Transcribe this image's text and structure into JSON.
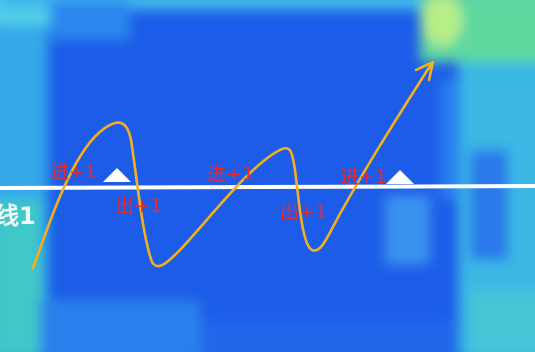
{
  "line": {
    "label": "线1"
  },
  "annotations": [
    {
      "text": "进+1"
    },
    {
      "text": "出+1"
    },
    {
      "text": "进+1"
    },
    {
      "text": "出+1"
    },
    {
      "text": "进+1"
    }
  ],
  "colors": {
    "counting_line": "#ffffff",
    "path": "#f2b01e",
    "annotation_text": "#e8282a",
    "background": "#1c5ce8"
  }
}
